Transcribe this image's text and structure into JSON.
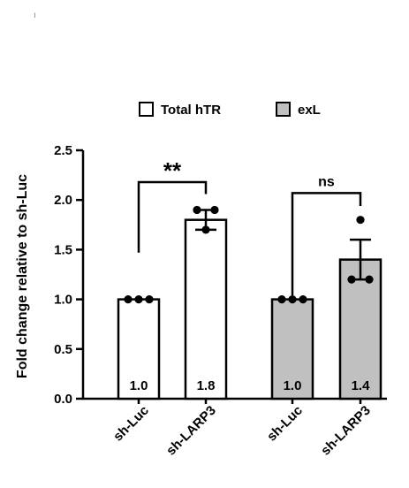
{
  "chart_data": {
    "type": "bar",
    "title": "",
    "xlabel": "",
    "ylabel": "Fold change relative to sh-Luc",
    "ylim": [
      0,
      2.5
    ],
    "yticks": [
      "0.0",
      "0.5",
      "1.0",
      "1.5",
      "2.0",
      "2.5"
    ],
    "grid": false,
    "legend_position": "top",
    "categories": [
      "sh-Luc",
      "sh-LARP3",
      "sh-Luc",
      "sh-LARP3"
    ],
    "groups": [
      {
        "name": "Total hTR",
        "color": "#ffffff",
        "bars": [
          {
            "category": "sh-Luc",
            "value": 1.0,
            "label": "1.0",
            "error": 0.0,
            "points": [
              1.0,
              1.0,
              1.0
            ]
          },
          {
            "category": "sh-LARP3",
            "value": 1.8,
            "label": "1.8",
            "error": 0.1,
            "points": [
              1.9,
              1.9,
              1.7
            ]
          }
        ],
        "comparison": "**"
      },
      {
        "name": "exL",
        "color": "#c0c0c0",
        "bars": [
          {
            "category": "sh-Luc",
            "value": 1.0,
            "label": "1.0",
            "error": 0.0,
            "points": [
              1.0,
              1.0,
              1.0
            ]
          },
          {
            "category": "sh-LARP3",
            "value": 1.4,
            "label": "1.4",
            "error": 0.2,
            "points": [
              1.8,
              1.2,
              1.2
            ]
          }
        ],
        "comparison": "ns"
      }
    ]
  },
  "marks": {
    "top_left_glyph": "ı"
  }
}
